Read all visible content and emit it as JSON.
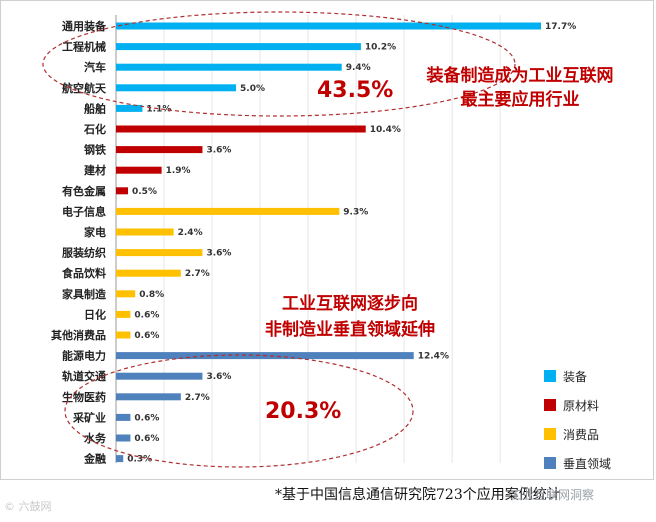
{
  "chart_data": {
    "type": "bar",
    "orientation": "horizontal",
    "categories": [
      "通用装备",
      "工程机械",
      "汽车",
      "航空航天",
      "船舶",
      "石化",
      "钢铁",
      "建材",
      "有色金属",
      "电子信息",
      "家电",
      "服装纺织",
      "食品饮料",
      "家具制造",
      "日化",
      "其他消费品",
      "能源电力",
      "轨道交通",
      "生物医药",
      "采矿业",
      "水务",
      "金融"
    ],
    "values": [
      17.7,
      10.2,
      9.4,
      5.0,
      1.1,
      10.4,
      3.6,
      1.9,
      0.5,
      9.3,
      2.4,
      3.6,
      2.7,
      0.8,
      0.6,
      0.6,
      12.4,
      3.6,
      2.7,
      0.6,
      0.6,
      0.3
    ],
    "value_labels": [
      "17.7%",
      "10.2%",
      "9.4%",
      "5.0%",
      "1.1%",
      "10.4%",
      "3.6%",
      "1.9%",
      "0.5%",
      "9.3%",
      "2.4%",
      "3.6%",
      "2.7%",
      "0.8%",
      "0.6%",
      "0.6%",
      "12.4%",
      "3.6%",
      "2.7%",
      "0.6%",
      "0.6%",
      "0.3%"
    ],
    "groups": [
      0,
      0,
      0,
      0,
      0,
      1,
      1,
      1,
      1,
      2,
      2,
      2,
      2,
      2,
      2,
      2,
      3,
      3,
      3,
      3,
      3,
      3
    ],
    "series": [
      {
        "name": "装备",
        "color": "#00b0f0"
      },
      {
        "name": "原材料",
        "color": "#c00000"
      },
      {
        "name": "消费品",
        "color": "#ffc000"
      },
      {
        "name": "垂直领域",
        "color": "#4f81bd"
      }
    ],
    "xlim": [
      0,
      20
    ],
    "grid": true,
    "legend_position": "bottom-right",
    "annotations": [
      {
        "pct": "43.5%",
        "line1": "装备制造成为工业互联网",
        "line2": "最主要应用行业"
      },
      {
        "pct": "20.3%",
        "line1": "工业互联网逐步向",
        "line2": "非制造业垂直领域延伸"
      }
    ]
  },
  "footnote": "*基于中国信息通信研究院723个应用案例统计",
  "watermark_left": "© 六鼓网",
  "watermark_right": "工业互联网洞察"
}
